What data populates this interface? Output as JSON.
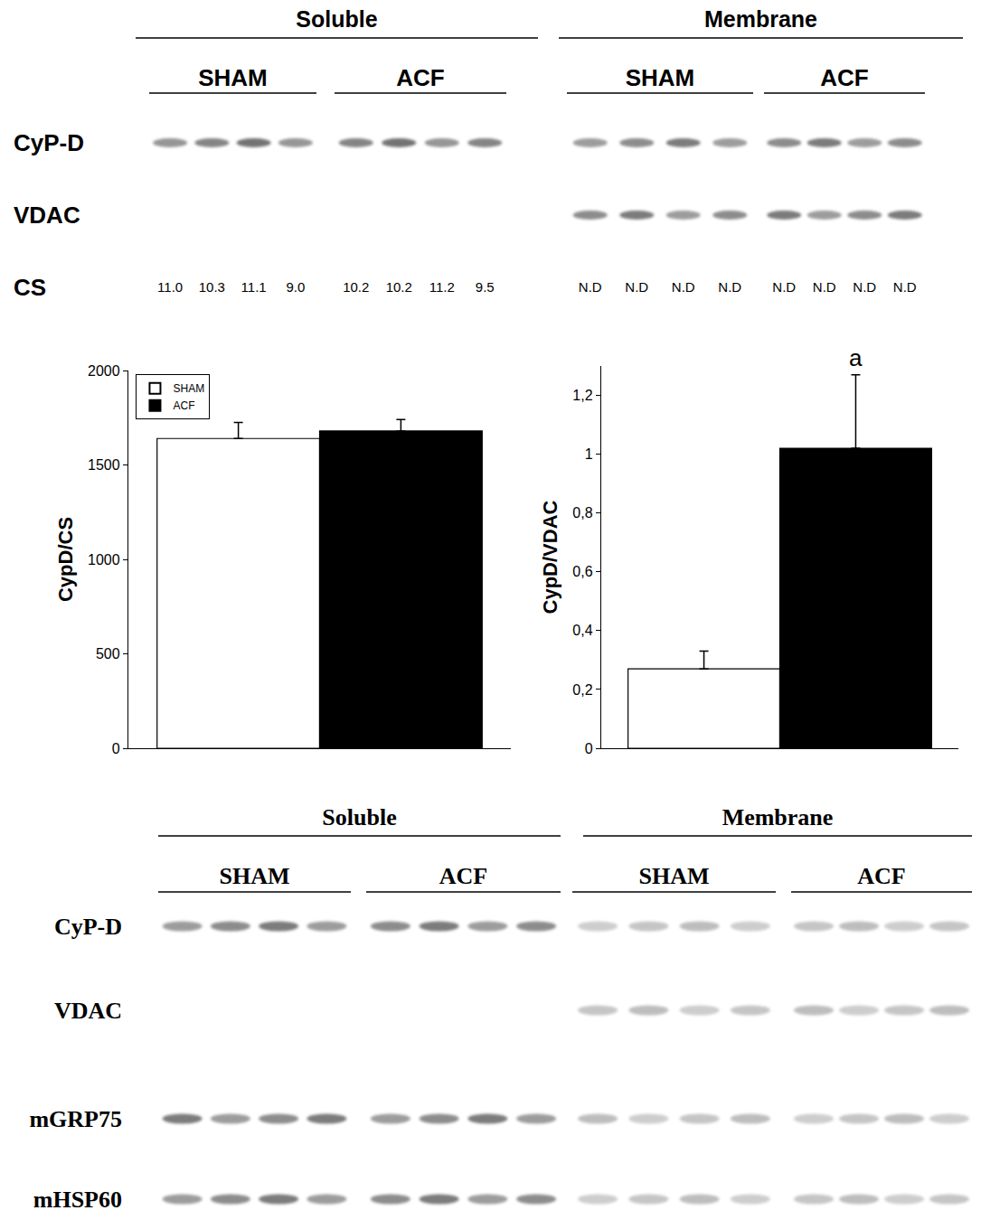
{
  "chart_data": [
    {
      "type": "bar",
      "categories": [
        null
      ],
      "series": [
        {
          "name": "SHAM",
          "color": "#ffffff",
          "values": [
            1640
          ],
          "errors": [
            85
          ]
        },
        {
          "name": "ACF",
          "color": "#000000",
          "values": [
            1680
          ],
          "errors": [
            60
          ]
        }
      ],
      "y_label": "CypD/CS",
      "ylim": [
        0,
        2000
      ],
      "yticks": [
        0,
        500,
        1000,
        1500,
        2000
      ],
      "legend": "top-left",
      "tick_labels": "y",
      "grid": false
    },
    {
      "type": "bar",
      "categories": [
        null
      ],
      "series": [
        {
          "color": "#ffffff",
          "values": [
            0.27
          ],
          "errors": [
            0.06
          ]
        },
        {
          "color": "#000000",
          "values": [
            1.02
          ],
          "errors": [
            0.25
          ]
        }
      ],
      "y_label": "CypD/VDAC",
      "ylim": [
        0,
        1.3
      ],
      "yticks": [
        0,
        {
          "value": 0.2,
          "label": "0,2"
        },
        {
          "value": 0.4,
          "label": "0,4"
        },
        {
          "value": 0.6,
          "label": "0,6"
        },
        {
          "value": 0.8,
          "label": "0,8"
        },
        1,
        {
          "value": 1.2,
          "label": "1,2"
        }
      ],
      "annotations": [
        {
          "text": "a",
          "series": 1,
          "category": 0
        }
      ],
      "tick_labels": "y",
      "grid": false
    }
  ],
  "blot_panels": [
    {
      "fractions": [
        {
          "title": "Soluble",
          "groups": [
            "SHAM",
            "ACF"
          ]
        },
        {
          "title": "Membrane",
          "groups": [
            "SHAM",
            "ACF"
          ]
        }
      ],
      "lanes_per_group": 4,
      "rows": [
        {
          "label": "CyP-D",
          "bands_in": [
            "Soluble",
            "Membrane"
          ]
        },
        {
          "label": "VDAC",
          "bands_in": [
            "Membrane"
          ]
        },
        {
          "label": "CS",
          "values": {
            "Soluble": [
              "11.0",
              "10.3",
              "11.1",
              "9.0",
              "10.2",
              "10.2",
              "11.2",
              "9.5"
            ],
            "Membrane": [
              "N.D",
              "N.D",
              "N.D",
              "N.D",
              "N.D",
              "N.D",
              "N.D",
              "N.D"
            ]
          }
        }
      ]
    },
    {
      "fractions": [
        {
          "title": "Soluble",
          "groups": [
            "SHAM",
            "ACF"
          ]
        },
        {
          "title": "Membrane",
          "groups": [
            "SHAM",
            "ACF"
          ]
        }
      ],
      "lanes_per_group": 4,
      "rows": [
        {
          "label": "CyP-D",
          "bands_in": [
            "Soluble",
            "Membrane"
          ]
        },
        {
          "label": "VDAC",
          "bands_in": [
            "Membrane"
          ]
        },
        {
          "label": "mGRP75",
          "bands_in": [
            "Soluble",
            "Membrane"
          ]
        },
        {
          "label": "mHSP60",
          "bands_in": [
            "Soluble",
            "Membrane"
          ]
        }
      ]
    }
  ]
}
